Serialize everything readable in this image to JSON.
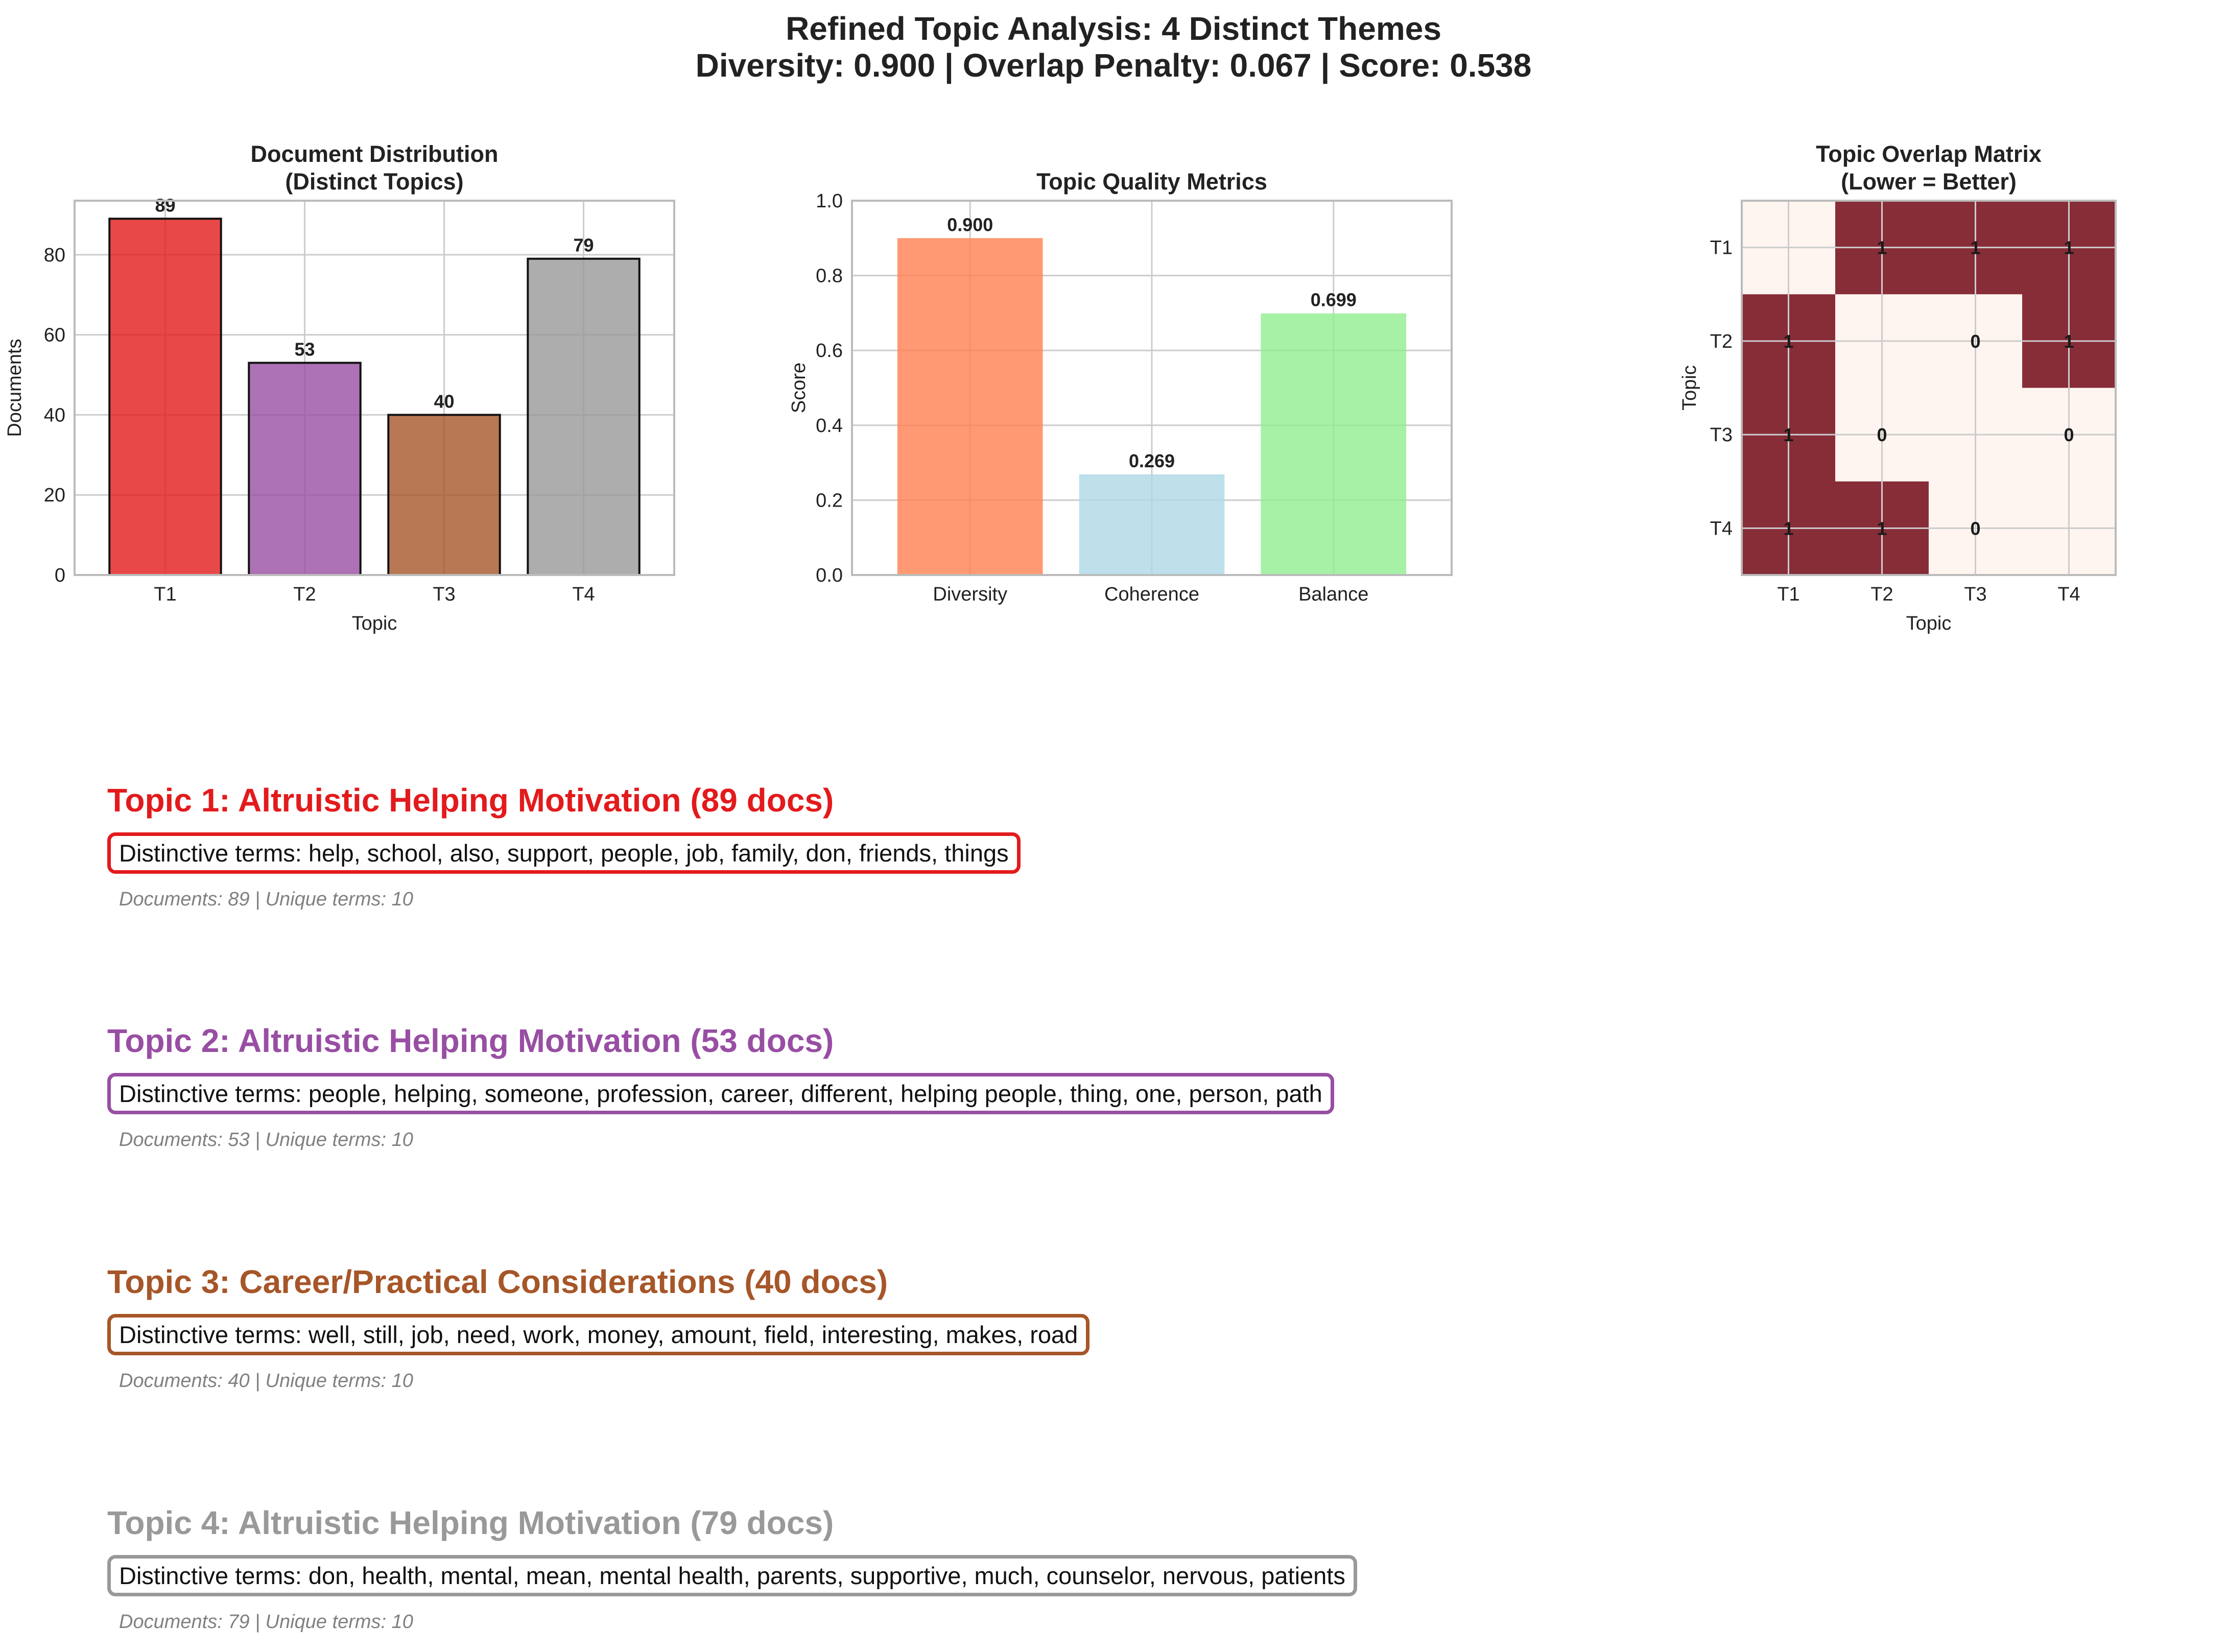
{
  "figure": {
    "title_line1": "Refined Topic Analysis: 4 Distinct Themes",
    "title_line2": "Diversity: 0.900 | Overlap Penalty: 0.067 | Score: 0.538"
  },
  "chart_data": [
    {
      "type": "bar",
      "title": "Document Distribution\n(Distinct Topics)",
      "title_lines": [
        "Document Distribution",
        "(Distinct Topics)"
      ],
      "categories": [
        "T1",
        "T2",
        "T3",
        "T4"
      ],
      "values": [
        89,
        53,
        40,
        79
      ],
      "value_labels": [
        "89",
        "53",
        "40",
        "79"
      ],
      "colors": [
        "#e31a1c",
        "#984ea3",
        "#a65628",
        "#999999"
      ],
      "xlabel": "Topic",
      "ylabel": "Documents",
      "ylim": [
        0,
        93.5
      ],
      "yticks": [
        0,
        20,
        40,
        60,
        80
      ],
      "ytick_labels": [
        "0",
        "20",
        "40",
        "60",
        "80"
      ],
      "grid": true
    },
    {
      "type": "bar",
      "title": "Topic Quality Metrics",
      "categories": [
        "Diversity",
        "Coherence",
        "Balance"
      ],
      "values": [
        0.9,
        0.269,
        0.699
      ],
      "value_labels": [
        "0.900",
        "0.269",
        "0.699"
      ],
      "colors": [
        "#ff7f50",
        "#add8e6",
        "#90ee90"
      ],
      "xlabel": "",
      "ylabel": "Score",
      "ylim": [
        0,
        1.0
      ],
      "yticks": [
        0,
        0.2,
        0.4,
        0.6,
        0.8,
        1.0
      ],
      "ytick_labels": [
        "0.0",
        "0.2",
        "0.4",
        "0.6",
        "0.8",
        "1.0"
      ],
      "grid": true
    },
    {
      "type": "heatmap",
      "title": "Topic Overlap Matrix\n(Lower = Better)",
      "title_lines": [
        "Topic Overlap Matrix",
        "(Lower = Better)"
      ],
      "x_categories": [
        "T1",
        "T2",
        "T3",
        "T4"
      ],
      "y_categories": [
        "T1",
        "T2",
        "T3",
        "T4"
      ],
      "values": [
        [
          0,
          1,
          1,
          1
        ],
        [
          1,
          0,
          0,
          1
        ],
        [
          1,
          0,
          0,
          0
        ],
        [
          1,
          1,
          0,
          0
        ]
      ],
      "cell_labels": [
        [
          "",
          "1",
          "1",
          "1"
        ],
        [
          "1",
          "",
          "0",
          "1"
        ],
        [
          "1",
          "0",
          "",
          "0"
        ],
        [
          "1",
          "1",
          "0",
          ""
        ]
      ],
      "xlabel": "Topic",
      "ylabel": "Topic",
      "low_color": "#fff5f0",
      "high_color": "#872d38"
    }
  ],
  "topics": [
    {
      "title": "Topic 1: Altruistic Helping Motivation (89 docs)",
      "terms": "Distinctive terms: help, school, also, support, people, job, family, don, friends, things",
      "stats": "Documents: 89 | Unique terms: 10",
      "color": "#e31a1c"
    },
    {
      "title": "Topic 2: Altruistic Helping Motivation (53 docs)",
      "terms": "Distinctive terms: people, helping, someone, profession, career, different, helping people, thing, one, person, path",
      "stats": "Documents: 53 | Unique terms: 10",
      "color": "#984ea3"
    },
    {
      "title": "Topic 3: Career/Practical Considerations (40 docs)",
      "terms": "Distinctive terms: well, still, job, need, work, money, amount, field, interesting, makes, road",
      "stats": "Documents: 40 | Unique terms: 10",
      "color": "#a65628"
    },
    {
      "title": "Topic 4: Altruistic Helping Motivation (79 docs)",
      "terms": "Distinctive terms: don, health, mental, mean, mental health, parents, supportive, much, counselor, nervous, patients",
      "stats": "Documents: 79 | Unique terms: 10",
      "color": "#999999"
    }
  ]
}
